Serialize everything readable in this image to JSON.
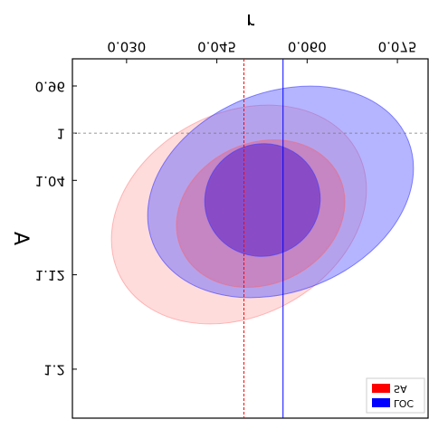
{
  "chart_data": {
    "type": "contour",
    "x_label": "r",
    "y_label": "A",
    "xlim": [
      0.021,
      0.0801
    ],
    "xticks": [
      {
        "value": 0.03,
        "label": "0.030"
      },
      {
        "value": 0.045,
        "label": "0.045"
      },
      {
        "value": 0.06,
        "label": "0.060"
      },
      {
        "value": 0.075,
        "label": "0.075"
      }
    ],
    "ylim": [
      0.937,
      1.2415
    ],
    "yticks": [
      {
        "value": 0.96,
        "label": "0.96"
      },
      1,
      {
        "value": 1.04,
        "label": "1.04"
      },
      {
        "value": 1.12,
        "label": "1.12"
      },
      {
        "value": 1.2,
        "label": "1.2"
      }
    ],
    "series": [
      {
        "name": "SA",
        "color": "#ff0000",
        "r_line": 0.0495
      },
      {
        "name": "LOC",
        "color": "#0000ff",
        "r_line": 0.056
      }
    ],
    "reference_a": 1,
    "legend": "lower right"
  }
}
